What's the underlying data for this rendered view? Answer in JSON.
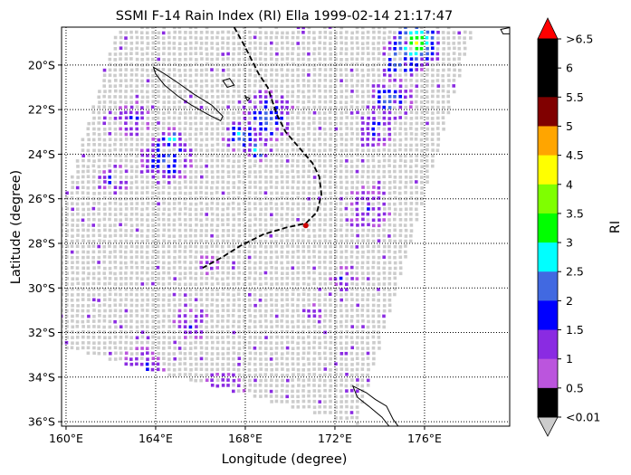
{
  "chart_data": {
    "type": "heatmap",
    "title": "SSMI F-14 Rain Index (RI) Ella 1999-02-14 21:17:47",
    "xlabel": "Longitude (degree)",
    "ylabel": "Latitude (degree)",
    "xlim": [
      159.8,
      179.8
    ],
    "ylim": [
      -36.2,
      -18.3
    ],
    "x_ticks": [
      {
        "value": 160,
        "label": "160°E"
      },
      {
        "value": 164,
        "label": "164°E"
      },
      {
        "value": 168,
        "label": "168°E"
      },
      {
        "value": 172,
        "label": "172°E"
      },
      {
        "value": 176,
        "label": "176°E"
      }
    ],
    "y_ticks": [
      {
        "value": -20,
        "label": "20°S"
      },
      {
        "value": -22,
        "label": "22°S"
      },
      {
        "value": -24,
        "label": "24°S"
      },
      {
        "value": -26,
        "label": "26°S"
      },
      {
        "value": -28,
        "label": "28°S"
      },
      {
        "value": -30,
        "label": "30°S"
      },
      {
        "value": -32,
        "label": "32°S"
      },
      {
        "value": -34,
        "label": "34°S"
      },
      {
        "value": -36,
        "label": "36°S"
      }
    ],
    "grid": true,
    "grid_style": "dotted",
    "swath_corners": [
      [
        162.3,
        -18.3
      ],
      [
        178.2,
        -18.3
      ],
      [
        173.0,
        -36.1
      ],
      [
        158.0,
        -32.2
      ]
    ],
    "colorbar": {
      "label": "RI",
      "levels": [
        "<0.01",
        "0.5",
        "1",
        "1.5",
        "2",
        "2.5",
        "3",
        "3.5",
        "4",
        "4.5",
        "5",
        "5.5",
        "6",
        ">6.5"
      ],
      "colors": [
        "#cccccc",
        "#bb55dd",
        "#8a2be2",
        "#0000ff",
        "#4169e1",
        "#00ffff",
        "#00ff00",
        "#7fff00",
        "#ffff00",
        "#ffa500",
        "#800000",
        "#000000",
        "#000000",
        "#ff0000"
      ],
      "extend": "both"
    },
    "track": [
      [
        167.5,
        -18.3
      ],
      [
        168.0,
        -19.2
      ],
      [
        168.6,
        -20.4
      ],
      [
        169.0,
        -21.0
      ],
      [
        169.4,
        -22.2
      ],
      [
        169.8,
        -23.0
      ],
      [
        170.4,
        -23.7
      ],
      [
        171.0,
        -24.4
      ],
      [
        171.3,
        -25.0
      ],
      [
        171.4,
        -25.8
      ],
      [
        171.2,
        -26.6
      ],
      [
        170.7,
        -27.1
      ],
      [
        169.8,
        -27.3
      ],
      [
        168.8,
        -27.6
      ],
      [
        167.8,
        -28.1
      ],
      [
        167.0,
        -28.6
      ],
      [
        166.1,
        -29.1
      ]
    ],
    "storm_position": [
      170.7,
      -27.2
    ],
    "rain_cells": [
      {
        "lon": 175.6,
        "lat": -19.0,
        "ri": 3.2,
        "r": 1.2
      },
      {
        "lon": 175.0,
        "lat": -19.8,
        "ri": 2.0,
        "r": 1.0
      },
      {
        "lon": 174.5,
        "lat": -21.6,
        "ri": 1.5,
        "r": 1.0
      },
      {
        "lon": 173.8,
        "lat": -22.9,
        "ri": 1.0,
        "r": 0.8
      },
      {
        "lon": 169.0,
        "lat": -22.3,
        "ri": 1.5,
        "r": 1.2
      },
      {
        "lon": 167.8,
        "lat": -23.2,
        "ri": 1.8,
        "r": 0.8
      },
      {
        "lon": 168.6,
        "lat": -23.8,
        "ri": 2.6,
        "r": 0.5
      },
      {
        "lon": 164.7,
        "lat": -23.3,
        "ri": 2.2,
        "r": 0.5
      },
      {
        "lon": 164.5,
        "lat": -24.2,
        "ri": 1.2,
        "r": 1.2
      },
      {
        "lon": 162.2,
        "lat": -25.2,
        "ri": 1.1,
        "r": 0.7
      },
      {
        "lon": 163.0,
        "lat": -22.4,
        "ri": 0.8,
        "r": 0.8
      },
      {
        "lon": 166.6,
        "lat": -35.5,
        "ri": 1.9,
        "r": 0.5
      },
      {
        "lon": 167.0,
        "lat": -34.8,
        "ri": 0.9,
        "r": 1.0
      },
      {
        "lon": 173.5,
        "lat": -26.4,
        "ri": 0.6,
        "r": 1.0
      },
      {
        "lon": 172.4,
        "lat": -29.6,
        "ri": 0.6,
        "r": 0.6
      },
      {
        "lon": 165.6,
        "lat": -31.6,
        "ri": 0.7,
        "r": 0.8
      },
      {
        "lon": 166.3,
        "lat": -29.0,
        "ri": 0.5,
        "r": 0.5
      },
      {
        "lon": 163.4,
        "lat": -33.6,
        "ri": 0.7,
        "r": 1.0
      },
      {
        "lon": 171.0,
        "lat": -31.2,
        "ri": 0.5,
        "r": 0.5
      },
      {
        "lon": 161.0,
        "lat": -19.6,
        "ri": 0.6,
        "r": 0.5
      }
    ]
  }
}
